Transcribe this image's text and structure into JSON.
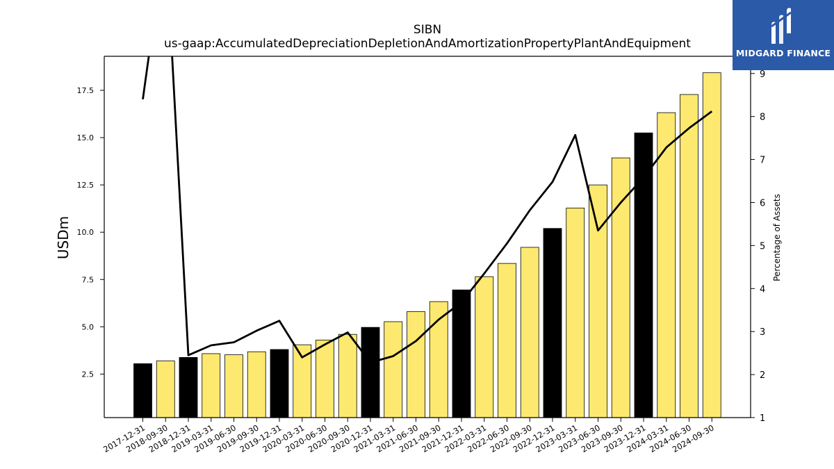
{
  "brand": {
    "name": "MIDGARD FINANCE",
    "colors": {
      "background": "#2b5aa8",
      "text": "#ffffff"
    }
  },
  "colors": {
    "bar_highlight": "#000000",
    "bar_normal": "#fde96f",
    "bar_edge": "#000000",
    "line": "#000000"
  },
  "chart_data": {
    "type": "bar",
    "title": "SIBN",
    "subtitle": "us-gaap:AccumulatedDepreciationDepletionAndAmortizationPropertyPlantAndEquipment",
    "ylabel": "USDm",
    "y2label": "Percentage of Assets",
    "ylim": [
      0.2,
      19.3
    ],
    "y2lim": [
      1,
      9.4
    ],
    "yticks": [
      2.5,
      5.0,
      7.5,
      10.0,
      12.5,
      15.0,
      17.5
    ],
    "y2ticks": [
      1,
      2,
      3,
      4,
      5,
      6,
      7,
      8,
      9
    ],
    "grid": false,
    "categories": [
      "2017-12-31",
      "2018-09-30",
      "2018-12-31",
      "2019-03-31",
      "2019-06-30",
      "2019-09-30",
      "2019-12-31",
      "2020-03-31",
      "2020-06-30",
      "2020-09-30",
      "2020-12-31",
      "2021-03-31",
      "2021-06-30",
      "2021-09-30",
      "2021-12-31",
      "2022-03-31",
      "2022-06-30",
      "2022-09-30",
      "2022-12-31",
      "2023-03-31",
      "2023-06-30",
      "2023-09-30",
      "2023-12-31",
      "2024-03-31",
      "2024-06-30",
      "2024-09-30"
    ],
    "series": [
      {
        "type": "bar",
        "axis": "left",
        "values": [
          3.05,
          3.2,
          3.38,
          3.58,
          3.52,
          3.68,
          3.8,
          4.05,
          4.3,
          4.6,
          4.97,
          5.27,
          5.8,
          6.33,
          6.95,
          7.65,
          8.35,
          9.2,
          10.2,
          11.28,
          12.5,
          13.93,
          15.25,
          16.32,
          17.28,
          18.43
        ],
        "highlight": [
          true,
          false,
          true,
          false,
          false,
          false,
          true,
          false,
          false,
          false,
          true,
          false,
          false,
          false,
          true,
          false,
          false,
          false,
          true,
          false,
          false,
          false,
          true,
          false,
          false,
          false
        ]
      },
      {
        "type": "line",
        "axis": "right",
        "values": [
          8.4,
          12.2,
          2.45,
          2.68,
          2.75,
          3.02,
          3.25,
          2.4,
          2.7,
          2.98,
          2.28,
          2.43,
          2.78,
          3.28,
          3.68,
          4.35,
          5.05,
          5.82,
          6.48,
          7.57,
          5.35,
          6.0,
          6.58,
          7.28,
          7.73,
          8.12
        ]
      }
    ]
  }
}
